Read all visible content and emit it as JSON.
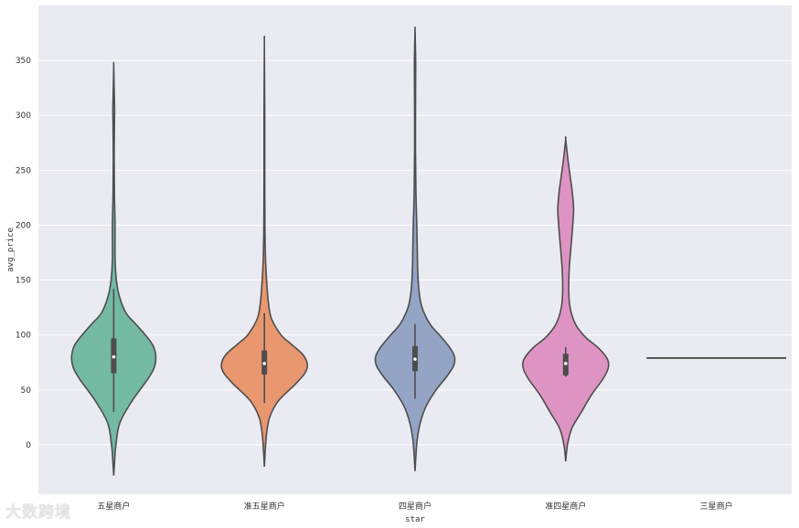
{
  "chart_data": {
    "type": "violin",
    "xlabel": "star",
    "ylabel": "avg_price",
    "ylim": [
      -45,
      400
    ],
    "yticks": [
      0,
      50,
      100,
      150,
      200,
      250,
      300,
      350
    ],
    "grid": true,
    "background": "#eaeaf2",
    "outline_color": "#4d4d4d",
    "categories": [
      "五星商户",
      "准五星商户",
      "四星商户",
      "准四星商户",
      "三星商户"
    ],
    "violins": [
      {
        "name": "五星商户",
        "color": "#74b9a1",
        "min": -28,
        "max": 345,
        "q1": 65,
        "median": 80,
        "q3": 97,
        "whisker_low": 30,
        "whisker_high": 142,
        "profile": [
          [
            -28,
            0.0
          ],
          [
            -15,
            0.02
          ],
          [
            0,
            0.05
          ],
          [
            20,
            0.14
          ],
          [
            40,
            0.42
          ],
          [
            60,
            0.78
          ],
          [
            70,
            0.92
          ],
          [
            80,
            0.96
          ],
          [
            90,
            0.9
          ],
          [
            100,
            0.72
          ],
          [
            110,
            0.5
          ],
          [
            120,
            0.28
          ],
          [
            135,
            0.13
          ],
          [
            150,
            0.06
          ],
          [
            170,
            0.03
          ],
          [
            200,
            0.03
          ],
          [
            230,
            0.015
          ],
          [
            260,
            0.01
          ],
          [
            290,
            0.015
          ],
          [
            305,
            0.02
          ],
          [
            320,
            0.012
          ],
          [
            345,
            0.0
          ]
        ]
      },
      {
        "name": "准五星商户",
        "color": "#e9976f",
        "min": -20,
        "max": 364,
        "q1": 64,
        "median": 74,
        "q3": 86,
        "whisker_low": 38,
        "whisker_high": 120,
        "profile": [
          [
            -20,
            0.0
          ],
          [
            -5,
            0.02
          ],
          [
            10,
            0.05
          ],
          [
            25,
            0.12
          ],
          [
            40,
            0.32
          ],
          [
            55,
            0.7
          ],
          [
            65,
            0.92
          ],
          [
            73,
            0.98
          ],
          [
            82,
            0.88
          ],
          [
            92,
            0.6
          ],
          [
            100,
            0.38
          ],
          [
            115,
            0.16
          ],
          [
            130,
            0.09
          ],
          [
            150,
            0.05
          ],
          [
            170,
            0.025
          ],
          [
            200,
            0.012
          ],
          [
            250,
            0.008
          ],
          [
            300,
            0.008
          ],
          [
            364,
            0.0
          ]
        ]
      },
      {
        "name": "四星商户",
        "color": "#93a4c5",
        "min": -24,
        "max": 378,
        "q1": 67,
        "median": 78,
        "q3": 90,
        "whisker_low": 42,
        "whisker_high": 110,
        "profile": [
          [
            -24,
            0.0
          ],
          [
            -10,
            0.02
          ],
          [
            5,
            0.05
          ],
          [
            20,
            0.12
          ],
          [
            35,
            0.25
          ],
          [
            50,
            0.48
          ],
          [
            62,
            0.72
          ],
          [
            72,
            0.88
          ],
          [
            80,
            0.9
          ],
          [
            88,
            0.8
          ],
          [
            98,
            0.6
          ],
          [
            110,
            0.34
          ],
          [
            125,
            0.16
          ],
          [
            140,
            0.09
          ],
          [
            160,
            0.06
          ],
          [
            180,
            0.05
          ],
          [
            200,
            0.04
          ],
          [
            230,
            0.02
          ],
          [
            270,
            0.01
          ],
          [
            320,
            0.012
          ],
          [
            345,
            0.015
          ],
          [
            360,
            0.01
          ],
          [
            378,
            0.0
          ]
        ]
      },
      {
        "name": "准四星商户",
        "color": "#de94c2",
        "min": -15,
        "max": 278,
        "q1": 63,
        "median": 74,
        "q3": 83,
        "whisker_low": 62,
        "whisker_high": 89,
        "profile": [
          [
            -15,
            0.0
          ],
          [
            0,
            0.04
          ],
          [
            15,
            0.14
          ],
          [
            30,
            0.36
          ],
          [
            45,
            0.58
          ],
          [
            60,
            0.85
          ],
          [
            70,
            0.97
          ],
          [
            78,
            0.95
          ],
          [
            88,
            0.75
          ],
          [
            98,
            0.45
          ],
          [
            110,
            0.22
          ],
          [
            125,
            0.1
          ],
          [
            140,
            0.07
          ],
          [
            160,
            0.08
          ],
          [
            180,
            0.12
          ],
          [
            200,
            0.16
          ],
          [
            215,
            0.18
          ],
          [
            230,
            0.15
          ],
          [
            245,
            0.1
          ],
          [
            260,
            0.05
          ],
          [
            278,
            0.0
          ]
        ]
      },
      {
        "name": "三星商户",
        "color": "#a6d854",
        "constant": 79
      }
    ]
  },
  "watermark": "大数跨境"
}
